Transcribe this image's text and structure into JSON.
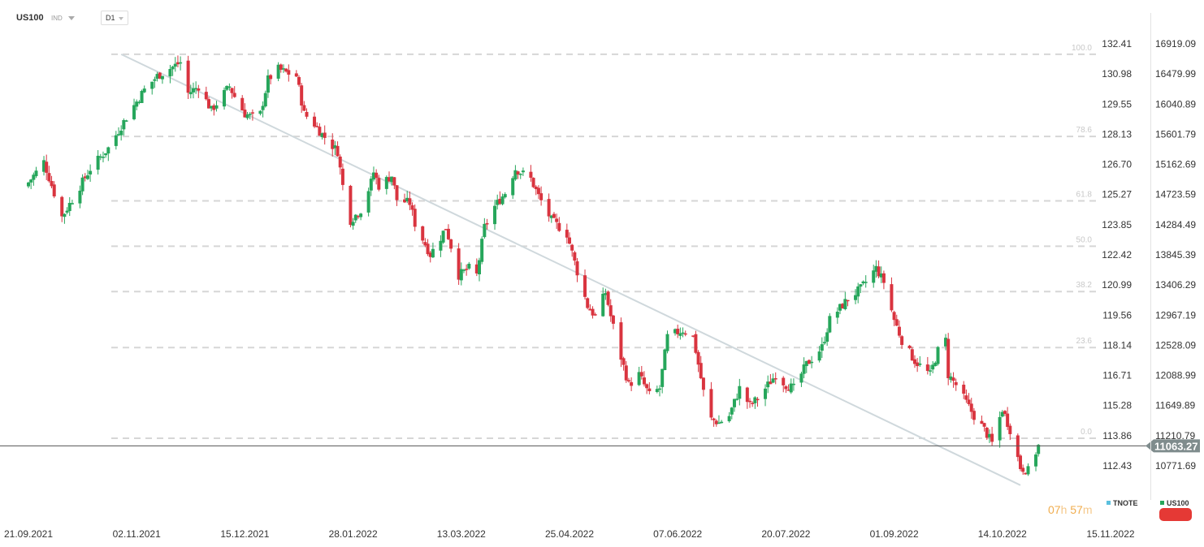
{
  "toolbar": {
    "symbol": "US100",
    "symbol_type": "IND",
    "timeframe": "D1"
  },
  "countdown": {
    "hours": "07",
    "hours_unit": "h",
    "minutes": "57",
    "minutes_unit": "m"
  },
  "legend": [
    {
      "label": "TNOTE",
      "color": "#5bc0de"
    },
    {
      "label": "US100",
      "color": "#26a65b"
    }
  ],
  "colors": {
    "up": "#26a65b",
    "down": "#d9343f",
    "trendline": "#cfd8dc",
    "fib_line": "#d6d6d6",
    "price_line": "#555555",
    "price_tag": "#7f8c8d"
  },
  "chart_data": {
    "type": "candlestick",
    "series": [
      {
        "name": "US100"
      }
    ],
    "x_ticks": [
      "21.09.2021",
      "02.11.2021",
      "15.12.2021",
      "28.01.2022",
      "13.03.2022",
      "25.04.2022",
      "07.06.2022",
      "20.07.2022",
      "01.09.2022",
      "14.10.2022",
      "15.11.2022"
    ],
    "y_left_ticks": [
      "132.41",
      "130.98",
      "129.55",
      "128.13",
      "126.70",
      "125.27",
      "123.85",
      "122.42",
      "120.99",
      "119.56",
      "118.14",
      "116.71",
      "115.28",
      "113.86",
      "112.43"
    ],
    "y_right_ticks": [
      "16919.09",
      "16479.99",
      "16040.89",
      "15601.79",
      "15162.69",
      "14723.59",
      "14284.49",
      "13845.39",
      "13406.29",
      "12967.19",
      "12528.09",
      "12088.99",
      "11649.89",
      "11210.79",
      "10771.69"
    ],
    "y_range": [
      10460,
      17020
    ],
    "last_price": "11063.27",
    "fib_levels": [
      {
        "label": "100.0",
        "price": 16767
      },
      {
        "label": "78.6",
        "price": 15570
      },
      {
        "label": "61.8",
        "price": 14631
      },
      {
        "label": "50.0",
        "price": 13971
      },
      {
        "label": "38.2",
        "price": 13311
      },
      {
        "label": "23.6",
        "price": 12495
      },
      {
        "label": "0.0",
        "price": 11174
      }
    ],
    "trendline": {
      "start": [
        "27.10.2021",
        16767
      ],
      "end": [
        "11.10.2022",
        10490
      ]
    },
    "anchors": [
      [
        "21.09.2021",
        14900
      ],
      [
        "27.09.2021",
        15200
      ],
      [
        "04.10.2021",
        14400
      ],
      [
        "08.10.2021",
        14650
      ],
      [
        "15.10.2021",
        15100
      ],
      [
        "22.10.2021",
        15400
      ],
      [
        "29.10.2021",
        15850
      ],
      [
        "05.11.2021",
        16250
      ],
      [
        "10.11.2021",
        16450
      ],
      [
        "19.11.2021",
        16650
      ],
      [
        "22.11.2021",
        16200
      ],
      [
        "26.11.2021",
        16300
      ],
      [
        "01.12.2021",
        15950
      ],
      [
        "03.12.2021",
        16050
      ],
      [
        "08.12.2021",
        16300
      ],
      [
        "10.12.2021",
        16150
      ],
      [
        "14.12.2021",
        15900
      ],
      [
        "17.12.2021",
        15850
      ],
      [
        "20.12.2021",
        15900
      ],
      [
        "23.12.2021",
        16400
      ],
      [
        "27.12.2021",
        16550
      ],
      [
        "30.12.2021",
        16500
      ],
      [
        "03.01.2022",
        16450
      ],
      [
        "06.01.2022",
        15900
      ],
      [
        "10.01.2022",
        15750
      ],
      [
        "13.01.2022",
        15600
      ],
      [
        "19.01.2022",
        15350
      ],
      [
        "21.01.2022",
        14850
      ],
      [
        "24.01.2022",
        14350
      ],
      [
        "28.01.2022",
        14500
      ],
      [
        "01.02.2022",
        14900
      ],
      [
        "02.02.2022",
        15050
      ],
      [
        "04.02.2022",
        14850
      ],
      [
        "09.02.2022",
        15000
      ],
      [
        "11.02.2022",
        14650
      ],
      [
        "16.02.2022",
        14600
      ],
      [
        "18.02.2022",
        14300
      ],
      [
        "24.02.2022",
        13850
      ],
      [
        "28.02.2022",
        14100
      ],
      [
        "02.03.2022",
        14250
      ],
      [
        "07.03.2022",
        13550
      ],
      [
        "11.03.2022",
        13650
      ],
      [
        "14.03.2022",
        13550
      ],
      [
        "17.03.2022",
        14250
      ],
      [
        "21.03.2022",
        14550
      ],
      [
        "25.03.2022",
        14750
      ],
      [
        "29.03.2022",
        15100
      ],
      [
        "04.04.2022",
        14950
      ],
      [
        "07.04.2022",
        14700
      ],
      [
        "12.04.2022",
        14350
      ],
      [
        "18.04.2022",
        14150
      ],
      [
        "22.04.2022",
        13600
      ],
      [
        "26.04.2022",
        13100
      ],
      [
        "29.04.2022",
        12950
      ],
      [
        "03.05.2022",
        13300
      ],
      [
        "05.05.2022",
        12950
      ],
      [
        "09.05.2022",
        12350
      ],
      [
        "12.05.2022",
        11950
      ],
      [
        "16.05.2022",
        12100
      ],
      [
        "20.05.2022",
        11800
      ],
      [
        "24.05.2022",
        11900
      ],
      [
        "27.05.2022",
        12650
      ],
      [
        "02.06.2022",
        12750
      ],
      [
        "06.06.2022",
        12650
      ],
      [
        "10.06.2022",
        11850
      ],
      [
        "13.06.2022",
        11450
      ],
      [
        "16.06.2022",
        11400
      ],
      [
        "20.06.2022",
        11500
      ],
      [
        "24.06.2022",
        11900
      ],
      [
        "28.06.2022",
        11650
      ],
      [
        "01.07.2022",
        11750
      ],
      [
        "08.07.2022",
        12100
      ],
      [
        "12.07.2022",
        11950
      ],
      [
        "15.07.2022",
        11900
      ],
      [
        "20.07.2022",
        12250
      ],
      [
        "26.07.2022",
        12500
      ],
      [
        "29.07.2022",
        12900
      ],
      [
        "05.08.2022",
        13200
      ],
      [
        "10.08.2022",
        13350
      ],
      [
        "16.08.2022",
        13650
      ],
      [
        "19.08.2022",
        13450
      ],
      [
        "23.08.2022",
        12900
      ],
      [
        "26.08.2022",
        12600
      ],
      [
        "31.08.2022",
        12300
      ],
      [
        "06.09.2022",
        12100
      ],
      [
        "09.09.2022",
        12450
      ],
      [
        "12.09.2022",
        12600
      ],
      [
        "13.09.2022",
        12100
      ],
      [
        "16.09.2022",
        11950
      ],
      [
        "23.09.2022",
        11500
      ],
      [
        "27.09.2022",
        11300
      ],
      [
        "30.09.2022",
        11100
      ],
      [
        "04.10.2022",
        11600
      ],
      [
        "07.10.2022",
        11300
      ],
      [
        "11.10.2022",
        10750
      ],
      [
        "14.10.2022",
        10700
      ],
      [
        "18.10.2022",
        11063
      ]
    ]
  }
}
